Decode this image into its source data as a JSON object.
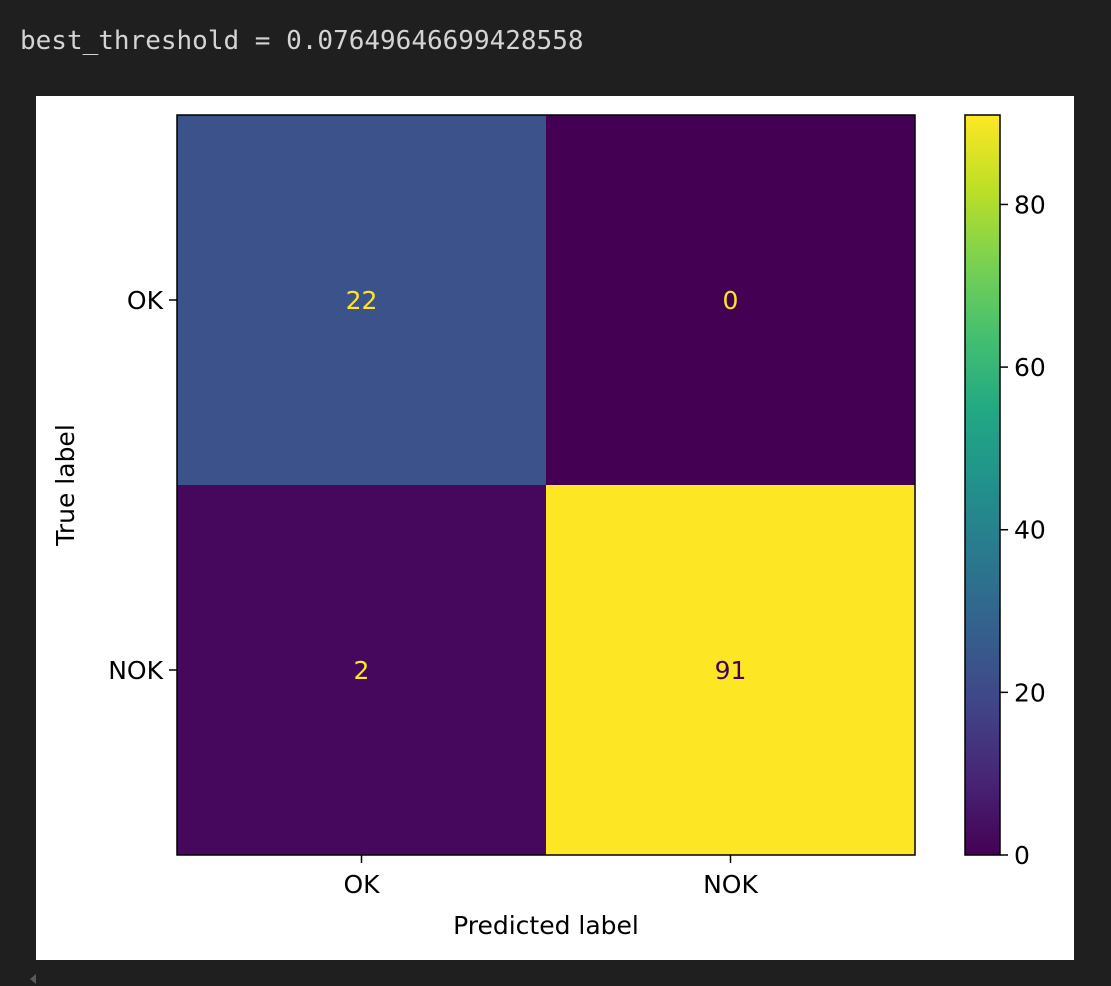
{
  "output": {
    "text": "best_threshold = 0.07649646699428558"
  },
  "chart_data": {
    "type": "heatmap",
    "title": "",
    "xlabel": "Predicted label",
    "ylabel": "True label",
    "x_categories": [
      "OK",
      "NOK"
    ],
    "y_categories": [
      "OK",
      "NOK"
    ],
    "values": [
      [
        22,
        0
      ],
      [
        2,
        91
      ]
    ],
    "colormap": "viridis",
    "vmin": 0,
    "vmax": 91,
    "colorbar": {
      "ticks": [
        0,
        20,
        40,
        60,
        80
      ],
      "tick_labels": [
        "0",
        "20",
        "40",
        "60",
        "80"
      ]
    },
    "cell_colors": [
      [
        "#3b528b",
        "#440154"
      ],
      [
        "#46085c",
        "#fde725"
      ]
    ],
    "text_colors": [
      [
        "#fde725",
        "#fde725"
      ],
      [
        "#fde725",
        "#440154"
      ]
    ]
  }
}
